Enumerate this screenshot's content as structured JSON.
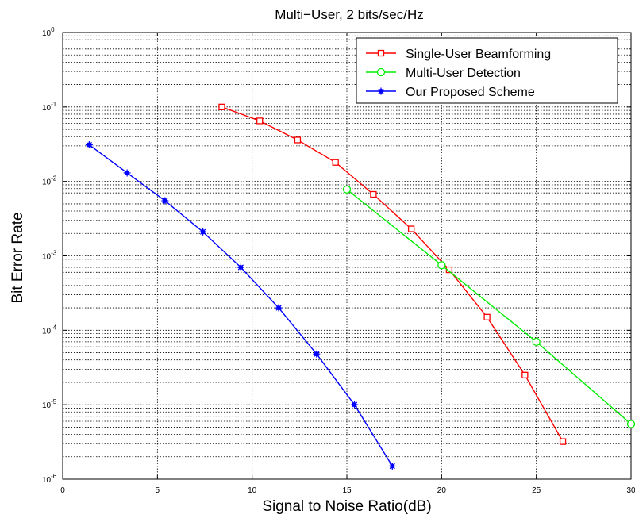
{
  "chart_data": {
    "type": "line",
    "title": "Multi−User, 2 bits/sec/Hz",
    "xlabel": "Signal to Noise Ratio(dB)",
    "ylabel": "Bit Error Rate",
    "xlim": [
      0,
      30
    ],
    "ylim": [
      1e-06,
      1
    ],
    "y_scale": "log",
    "grid": "on, dotted, major and minor",
    "legend_position": "top-right",
    "x_ticks": [
      0,
      5,
      10,
      15,
      20,
      25,
      30
    ],
    "x_tick_labels": [
      "0",
      "5",
      "10",
      "15",
      "20",
      "25",
      "30"
    ],
    "y_tick_labels": [
      {
        "value": 1,
        "base": "10",
        "exp": "0"
      },
      {
        "value": 0.1,
        "base": "10",
        "exp": "-1"
      },
      {
        "value": 0.01,
        "base": "10",
        "exp": "-2"
      },
      {
        "value": 0.001,
        "base": "10",
        "exp": "-3"
      },
      {
        "value": 0.0001,
        "base": "10",
        "exp": "-4"
      },
      {
        "value": 1e-05,
        "base": "10",
        "exp": "-5"
      },
      {
        "value": 1e-06,
        "base": "10",
        "exp": "-6"
      }
    ],
    "series": [
      {
        "name": "Single-User Beamforming",
        "color": "#ff0000",
        "marker": "square",
        "x": [
          8.4,
          10.4,
          12.4,
          14.4,
          16.4,
          18.4,
          20.4,
          22.4,
          24.4,
          26.4
        ],
        "y": [
          0.1,
          0.065,
          0.036,
          0.018,
          0.0067,
          0.0023,
          0.00065,
          0.00015,
          2.5e-05,
          3.2e-06
        ]
      },
      {
        "name": "Multi-User Detection",
        "color": "#00ee00",
        "marker": "circle",
        "x": [
          15,
          20,
          25,
          30
        ],
        "y": [
          0.0078,
          0.00075,
          7e-05,
          5.5e-06
        ]
      },
      {
        "name": "Our Proposed Scheme",
        "color": "#0000ff",
        "marker": "star",
        "x": [
          1.4,
          3.4,
          5.4,
          7.4,
          9.4,
          11.4,
          13.4,
          15.4,
          17.4
        ],
        "y": [
          0.031,
          0.013,
          0.0055,
          0.0021,
          0.0007,
          0.0002,
          4.8e-05,
          1e-05,
          1.5e-06
        ]
      }
    ]
  }
}
